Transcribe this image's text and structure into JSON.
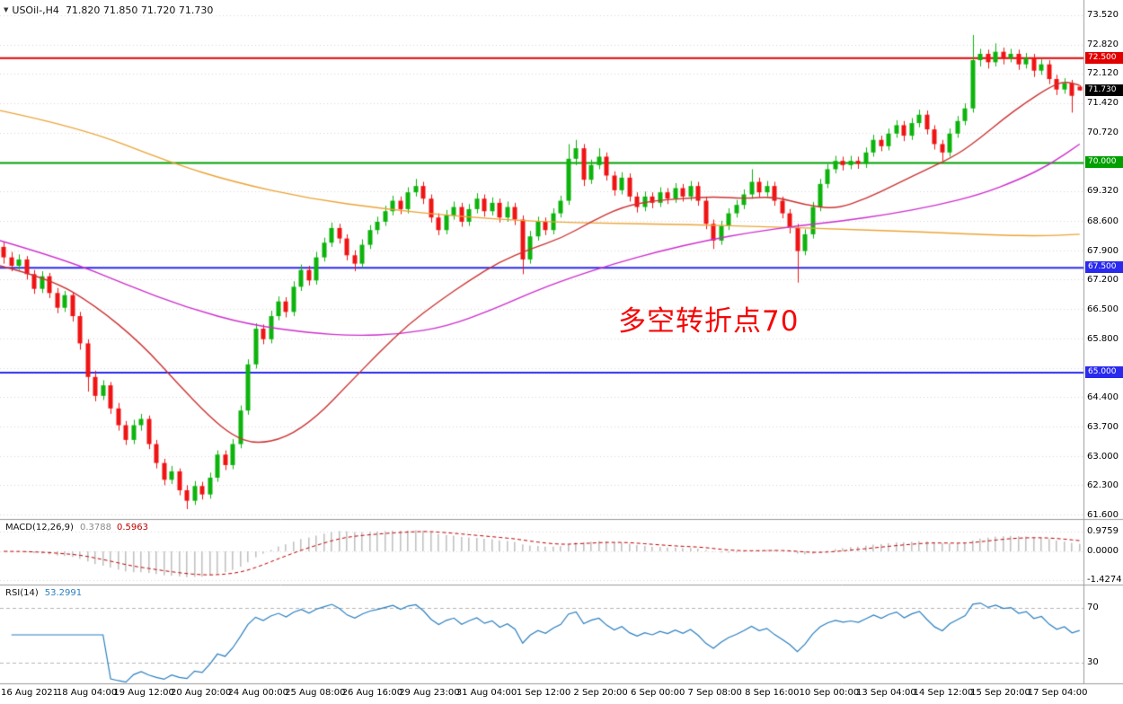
{
  "header": {
    "symbol": "USOil-,H4",
    "ohlc": "71.820 71.850 71.720 71.730",
    "marker_icon": "▼"
  },
  "chart_data": {
    "type": "candlestick",
    "title": "USOil-,H4",
    "price_axis": {
      "max": 73.52,
      "min": 61.6,
      "grid_step": 0.7,
      "ticks": [
        "73.520",
        "72.820",
        "72.120",
        "71.420",
        "70.720",
        "69.320",
        "68.600",
        "67.900",
        "67.200",
        "66.500",
        "65.800",
        "64.400",
        "63.700",
        "63.000",
        "62.300",
        "61.600"
      ]
    },
    "x_labels": [
      "16 Aug 2021",
      "18 Aug 04:00",
      "19 Aug 12:00",
      "20 Aug 20:00",
      "24 Aug 00:00",
      "25 Aug 08:00",
      "26 Aug 16:00",
      "29 Aug 23:00",
      "31 Aug 04:00",
      "1 Sep 12:00",
      "2 Sep 20:00",
      "6 Sep 00:00",
      "7 Sep 08:00",
      "8 Sep 16:00",
      "10 Sep 00:00",
      "13 Sep 04:00",
      "14 Sep 12:00",
      "15 Sep 20:00",
      "17 Sep 04:00"
    ],
    "colors": {
      "up": "#0cb40c",
      "down": "#f01414",
      "grid": "#d9d9d9",
      "separator": "#9a9a9a"
    },
    "levels": [
      {
        "value": 72.5,
        "label": "72.500",
        "color": "#e10000",
        "width": 2
      },
      {
        "value": 70.0,
        "label": "70.000",
        "color": "#00a000",
        "width": 2
      },
      {
        "value": 67.5,
        "label": "67.500",
        "color": "#2a2aee",
        "width": 2
      },
      {
        "value": 65.0,
        "label": "65.000",
        "color": "#2a2aee",
        "width": 2
      }
    ],
    "current_price": {
      "value": 71.73,
      "label": "71.730",
      "badge_color": "#000000"
    },
    "annotation": {
      "text": "多空转折点70",
      "color": "#f50707"
    },
    "overlays": [
      {
        "name": "ma-slow-orange",
        "color": "#eca437",
        "points": [
          [
            0,
            71.25
          ],
          [
            10,
            70.85
          ],
          [
            22,
            70.0
          ],
          [
            30,
            69.55
          ],
          [
            40,
            69.15
          ],
          [
            50,
            68.9
          ],
          [
            60,
            68.72
          ],
          [
            70,
            68.6
          ],
          [
            80,
            68.56
          ],
          [
            90,
            68.53
          ],
          [
            100,
            68.48
          ],
          [
            110,
            68.42
          ],
          [
            120,
            68.36
          ],
          [
            130,
            68.28
          ],
          [
            136,
            68.26
          ],
          [
            141,
            68.3
          ]
        ]
      },
      {
        "name": "ma-mid-magenta",
        "color": "#ce2fce",
        "points": [
          [
            0,
            68.15
          ],
          [
            8,
            67.7
          ],
          [
            16,
            67.1
          ],
          [
            24,
            66.55
          ],
          [
            32,
            66.15
          ],
          [
            40,
            65.95
          ],
          [
            46,
            65.88
          ],
          [
            52,
            65.92
          ],
          [
            58,
            66.1
          ],
          [
            64,
            66.5
          ],
          [
            69,
            66.9
          ],
          [
            74,
            67.25
          ],
          [
            80,
            67.6
          ],
          [
            86,
            67.9
          ],
          [
            92,
            68.15
          ],
          [
            98,
            68.35
          ],
          [
            104,
            68.5
          ],
          [
            110,
            68.62
          ],
          [
            116,
            68.78
          ],
          [
            122,
            68.98
          ],
          [
            128,
            69.25
          ],
          [
            133,
            69.6
          ],
          [
            137,
            69.95
          ],
          [
            141,
            70.45
          ]
        ]
      },
      {
        "name": "ma-fast-red",
        "color": "#cc3333",
        "points": [
          [
            0,
            67.55
          ],
          [
            6,
            67.25
          ],
          [
            12,
            66.6
          ],
          [
            18,
            65.7
          ],
          [
            23,
            64.7
          ],
          [
            27,
            63.95
          ],
          [
            30,
            63.5
          ],
          [
            33,
            63.3
          ],
          [
            37,
            63.45
          ],
          [
            41,
            63.95
          ],
          [
            45,
            64.7
          ],
          [
            49,
            65.45
          ],
          [
            53,
            66.15
          ],
          [
            57,
            66.7
          ],
          [
            61,
            67.2
          ],
          [
            65,
            67.65
          ],
          [
            69,
            67.95
          ],
          [
            73,
            68.2
          ],
          [
            77,
            68.6
          ],
          [
            81,
            68.95
          ],
          [
            85,
            69.1
          ],
          [
            89,
            69.15
          ],
          [
            93,
            69.2
          ],
          [
            97,
            69.15
          ],
          [
            101,
            69.2
          ],
          [
            105,
            69.0
          ],
          [
            109,
            68.9
          ],
          [
            113,
            69.15
          ],
          [
            117,
            69.5
          ],
          [
            121,
            69.85
          ],
          [
            125,
            70.2
          ],
          [
            128,
            70.6
          ],
          [
            131,
            71.05
          ],
          [
            134,
            71.45
          ],
          [
            137,
            71.8
          ],
          [
            139,
            71.95
          ],
          [
            141,
            71.85
          ]
        ]
      }
    ],
    "indicators": {
      "macd": {
        "name_label": "MACD(12,26,9)",
        "value_main": "0.3788",
        "value_signal": "0.5963",
        "axis_labels": [
          "0.9759",
          "0.0000",
          "-1.4274"
        ],
        "histogram_color": "#c2c2c2",
        "signal_color": "#c00000"
      },
      "rsi": {
        "name_label": "RSI(14)",
        "value": "53.2991",
        "levels": [
          70,
          30
        ],
        "axis_labels": [
          "70",
          "30"
        ],
        "line_color": "#2a7fc0"
      }
    },
    "candles": [
      [
        68.0,
        68.12,
        67.6,
        67.75
      ],
      [
        67.75,
        67.88,
        67.42,
        67.55
      ],
      [
        67.55,
        67.82,
        67.45,
        67.7
      ],
      [
        67.7,
        67.78,
        67.22,
        67.35
      ],
      [
        67.35,
        67.45,
        66.88,
        67.0
      ],
      [
        67.0,
        67.42,
        66.9,
        67.3
      ],
      [
        67.3,
        67.38,
        66.78,
        66.9
      ],
      [
        66.9,
        67.02,
        66.42,
        66.55
      ],
      [
        66.55,
        66.95,
        66.45,
        66.85
      ],
      [
        66.85,
        66.92,
        66.22,
        66.35
      ],
      [
        66.35,
        66.45,
        65.55,
        65.7
      ],
      [
        65.7,
        65.8,
        64.55,
        64.9
      ],
      [
        64.9,
        65.05,
        64.32,
        64.45
      ],
      [
        64.45,
        64.82,
        64.35,
        64.7
      ],
      [
        64.7,
        64.78,
        64.02,
        64.15
      ],
      [
        64.15,
        64.28,
        63.62,
        63.75
      ],
      [
        63.75,
        63.85,
        63.28,
        63.4
      ],
      [
        63.4,
        63.88,
        63.3,
        63.75
      ],
      [
        63.75,
        64.02,
        63.62,
        63.9
      ],
      [
        63.9,
        63.98,
        63.18,
        63.3
      ],
      [
        63.3,
        63.4,
        62.72,
        62.85
      ],
      [
        62.85,
        62.95,
        62.32,
        62.45
      ],
      [
        62.45,
        62.78,
        62.35,
        62.65
      ],
      [
        62.65,
        62.72,
        62.08,
        62.2
      ],
      [
        62.2,
        62.32,
        61.75,
        61.95
      ],
      [
        61.95,
        62.42,
        61.85,
        62.3
      ],
      [
        62.3,
        62.4,
        61.98,
        62.1
      ],
      [
        62.1,
        62.62,
        62.0,
        62.5
      ],
      [
        62.5,
        63.15,
        62.4,
        63.05
      ],
      [
        63.05,
        63.15,
        62.68,
        62.8
      ],
      [
        62.8,
        63.42,
        62.7,
        63.3
      ],
      [
        63.3,
        64.22,
        63.2,
        64.1
      ],
      [
        64.1,
        65.32,
        64.0,
        65.2
      ],
      [
        65.2,
        66.18,
        65.1,
        66.05
      ],
      [
        66.05,
        66.15,
        65.68,
        65.8
      ],
      [
        65.8,
        66.48,
        65.7,
        66.35
      ],
      [
        66.35,
        66.82,
        66.25,
        66.7
      ],
      [
        66.7,
        66.8,
        66.32,
        66.45
      ],
      [
        66.45,
        67.18,
        66.35,
        67.05
      ],
      [
        67.05,
        67.58,
        66.95,
        67.45
      ],
      [
        67.45,
        67.55,
        67.08,
        67.2
      ],
      [
        67.2,
        67.88,
        67.1,
        67.75
      ],
      [
        67.75,
        68.22,
        67.65,
        68.1
      ],
      [
        68.1,
        68.58,
        68.0,
        68.45
      ],
      [
        68.45,
        68.55,
        68.08,
        68.2
      ],
      [
        68.2,
        68.3,
        67.68,
        67.8
      ],
      [
        67.8,
        67.92,
        67.42,
        67.6
      ],
      [
        67.6,
        68.18,
        67.5,
        68.05
      ],
      [
        68.05,
        68.52,
        67.95,
        68.4
      ],
      [
        68.4,
        68.72,
        68.3,
        68.6
      ],
      [
        68.6,
        68.98,
        68.5,
        68.85
      ],
      [
        68.85,
        69.22,
        68.75,
        69.1
      ],
      [
        69.1,
        69.2,
        68.78,
        68.9
      ],
      [
        68.9,
        69.42,
        68.8,
        69.3
      ],
      [
        69.3,
        69.62,
        69.2,
        69.45
      ],
      [
        69.45,
        69.55,
        69.02,
        69.15
      ],
      [
        69.15,
        69.25,
        68.58,
        68.7
      ],
      [
        68.7,
        68.8,
        68.28,
        68.4
      ],
      [
        68.4,
        68.88,
        68.3,
        68.75
      ],
      [
        68.75,
        69.08,
        68.65,
        68.95
      ],
      [
        68.95,
        69.05,
        68.48,
        68.6
      ],
      [
        68.6,
        69.02,
        68.5,
        68.9
      ],
      [
        68.9,
        69.28,
        68.8,
        69.15
      ],
      [
        69.15,
        69.25,
        68.72,
        68.85
      ],
      [
        68.85,
        69.18,
        68.75,
        69.05
      ],
      [
        69.05,
        69.15,
        68.58,
        68.7
      ],
      [
        68.7,
        69.08,
        68.6,
        68.95
      ],
      [
        68.95,
        69.05,
        68.52,
        68.65
      ],
      [
        68.65,
        68.75,
        67.35,
        67.7
      ],
      [
        67.7,
        68.38,
        67.6,
        68.25
      ],
      [
        68.25,
        68.72,
        68.15,
        68.6
      ],
      [
        68.6,
        68.7,
        68.28,
        68.4
      ],
      [
        68.4,
        68.92,
        68.3,
        68.8
      ],
      [
        68.8,
        69.22,
        68.7,
        69.1
      ],
      [
        69.1,
        70.45,
        69.0,
        70.1
      ],
      [
        70.1,
        70.55,
        69.95,
        70.35
      ],
      [
        70.35,
        70.45,
        69.45,
        69.6
      ],
      [
        69.6,
        70.08,
        69.5,
        69.95
      ],
      [
        69.95,
        70.35,
        69.85,
        70.15
      ],
      [
        70.15,
        70.25,
        69.58,
        69.7
      ],
      [
        69.7,
        69.8,
        69.22,
        69.35
      ],
      [
        69.35,
        69.78,
        69.25,
        69.65
      ],
      [
        69.65,
        69.75,
        69.08,
        69.2
      ],
      [
        69.2,
        69.3,
        68.82,
        68.95
      ],
      [
        68.95,
        69.32,
        68.85,
        69.2
      ],
      [
        69.2,
        69.3,
        68.92,
        69.05
      ],
      [
        69.05,
        69.42,
        68.95,
        69.3
      ],
      [
        69.3,
        69.4,
        69.02,
        69.15
      ],
      [
        69.15,
        69.52,
        69.05,
        69.4
      ],
      [
        69.4,
        69.5,
        69.08,
        69.2
      ],
      [
        69.2,
        69.57,
        69.1,
        69.45
      ],
      [
        69.45,
        69.55,
        68.98,
        69.1
      ],
      [
        69.1,
        69.2,
        68.42,
        68.55
      ],
      [
        68.55,
        68.65,
        67.95,
        68.15
      ],
      [
        68.15,
        68.62,
        68.05,
        68.5
      ],
      [
        68.5,
        68.92,
        68.4,
        68.8
      ],
      [
        68.8,
        69.12,
        68.7,
        69.0
      ],
      [
        69.0,
        69.37,
        68.9,
        69.25
      ],
      [
        69.25,
        69.85,
        69.15,
        69.55
      ],
      [
        69.55,
        69.65,
        69.18,
        69.3
      ],
      [
        69.3,
        69.57,
        69.2,
        69.45
      ],
      [
        69.45,
        69.55,
        68.98,
        69.1
      ],
      [
        69.1,
        69.2,
        68.68,
        68.8
      ],
      [
        68.8,
        68.9,
        68.32,
        68.45
      ],
      [
        68.45,
        68.55,
        67.15,
        67.9
      ],
      [
        67.9,
        68.42,
        67.8,
        68.3
      ],
      [
        68.3,
        69.07,
        68.2,
        68.95
      ],
      [
        68.95,
        69.62,
        68.85,
        69.5
      ],
      [
        69.5,
        69.97,
        69.4,
        69.85
      ],
      [
        69.85,
        70.17,
        69.75,
        70.05
      ],
      [
        70.05,
        70.15,
        69.82,
        69.95
      ],
      [
        69.95,
        70.17,
        69.85,
        70.05
      ],
      [
        70.05,
        70.15,
        69.86,
        69.98
      ],
      [
        69.98,
        70.37,
        69.88,
        70.25
      ],
      [
        70.25,
        70.67,
        70.15,
        70.55
      ],
      [
        70.55,
        70.65,
        70.28,
        70.4
      ],
      [
        70.4,
        70.82,
        70.3,
        70.7
      ],
      [
        70.7,
        71.02,
        70.6,
        70.9
      ],
      [
        70.9,
        71.0,
        70.52,
        70.65
      ],
      [
        70.65,
        71.07,
        70.55,
        70.95
      ],
      [
        70.95,
        71.27,
        70.85,
        71.15
      ],
      [
        71.15,
        71.25,
        70.68,
        70.8
      ],
      [
        70.8,
        70.9,
        70.32,
        70.45
      ],
      [
        70.45,
        70.55,
        70.05,
        70.25
      ],
      [
        70.25,
        70.82,
        70.15,
        70.7
      ],
      [
        70.7,
        71.12,
        70.6,
        71.0
      ],
      [
        71.0,
        71.42,
        70.9,
        71.3
      ],
      [
        71.3,
        73.05,
        71.2,
        72.45
      ],
      [
        72.45,
        72.72,
        72.3,
        72.6
      ],
      [
        72.6,
        72.7,
        72.25,
        72.4
      ],
      [
        72.4,
        72.85,
        72.3,
        72.65
      ],
      [
        72.65,
        72.75,
        72.35,
        72.5
      ],
      [
        72.5,
        72.72,
        72.4,
        72.6
      ],
      [
        72.6,
        72.7,
        72.22,
        72.35
      ],
      [
        72.35,
        72.62,
        72.25,
        72.5
      ],
      [
        72.5,
        72.6,
        72.05,
        72.2
      ],
      [
        72.2,
        72.47,
        72.1,
        72.35
      ],
      [
        72.35,
        72.45,
        71.88,
        72.0
      ],
      [
        72.0,
        72.1,
        71.62,
        71.75
      ],
      [
        71.75,
        72.02,
        71.65,
        71.9
      ],
      [
        71.9,
        71.98,
        71.2,
        71.6
      ],
      [
        71.82,
        71.85,
        71.72,
        71.73
      ]
    ]
  }
}
